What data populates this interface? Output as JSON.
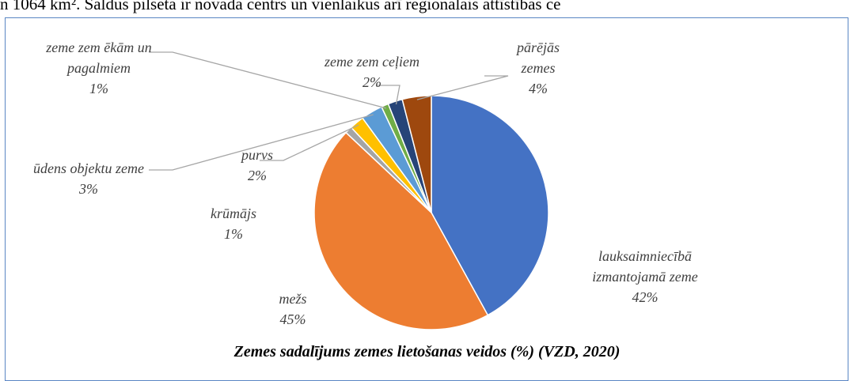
{
  "page_text": "n 1064 km². Saldus pilsēta ir novada centrs un vienlaikus arī reģionālais attīstības ce",
  "chart_data": {
    "type": "pie",
    "title": "Zemes sadalījums zemes lietošanas veidos (%) (VZD, 2020)",
    "categories": [
      "lauksaimniecībā izmantojamā zeme",
      "mežs",
      "krūmājs",
      "purvs",
      "ūdens objektu zeme",
      "zeme zem ēkām un pagalmiem",
      "zeme zem ceļiem",
      "pārējās zemes"
    ],
    "values": [
      42,
      45,
      1,
      2,
      3,
      1,
      2,
      4
    ],
    "value_labels": [
      "42%",
      "45%",
      "1%",
      "2%",
      "3%",
      "1%",
      "2%",
      "4%"
    ],
    "colors": [
      "#4472c4",
      "#ed7d31",
      "#a5a5a5",
      "#ffc000",
      "#5b9bd5",
      "#70ad47",
      "#264478",
      "#9e480e"
    ]
  }
}
